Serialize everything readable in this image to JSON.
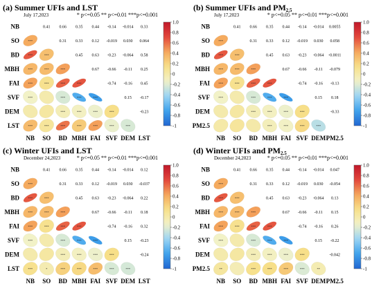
{
  "colors": {
    "scale": [
      "#2166d1",
      "#3fa2ec",
      "#9bd4f4",
      "#f2f2c8",
      "#f7e08a",
      "#f5a75c",
      "#e2463b",
      "#c0182a"
    ]
  },
  "chart_data": [
    {
      "type": "heatmap",
      "title": "(a) Summer   UFIs and LST",
      "date": "July 17,2023",
      "significance": "* p<=0.05   ** p<=0.01   ***p<=0.001",
      "labels": [
        "NB",
        "SO",
        "BD",
        "MBH",
        "FAI",
        "SVF",
        "DEM",
        "LST"
      ],
      "colorbar_ticks": [
        "1.0",
        "0.8",
        "0.6",
        "0.4",
        "0.2",
        "0",
        "-0.2",
        "-0.4",
        "-0.6",
        "-0.8",
        "-1"
      ],
      "matrix": [
        [
          null,
          0.41,
          0.66,
          0.35,
          0.44,
          -0.14,
          -0.014,
          0.33
        ],
        [
          0.41,
          null,
          0.31,
          0.33,
          0.12,
          -0.019,
          0.03,
          0.064
        ],
        [
          0.66,
          0.31,
          null,
          0.45,
          0.63,
          -0.23,
          -0.064,
          0.58
        ],
        [
          0.35,
          0.33,
          0.45,
          null,
          0.67,
          -0.66,
          -0.11,
          0.25
        ],
        [
          0.44,
          0.12,
          0.63,
          0.67,
          null,
          -0.74,
          -0.16,
          0.45
        ],
        [
          -0.14,
          -0.019,
          -0.23,
          -0.66,
          -0.74,
          null,
          0.15,
          -0.17
        ],
        [
          -0.014,
          0.03,
          -0.064,
          -0.11,
          -0.16,
          0.15,
          null,
          -0.23
        ],
        [
          0.33,
          0.064,
          0.58,
          0.25,
          0.45,
          -0.17,
          -0.23,
          null
        ]
      ],
      "value_labels": [
        [
          "",
          "0.41",
          "0.66",
          "0.35",
          "0.44",
          "-0.14",
          "-0.014",
          "0.33"
        ],
        [
          "",
          "",
          "0.31",
          "0.33",
          "0.12",
          "-0.019",
          "0.030",
          "0.064"
        ],
        [
          "",
          "",
          "",
          "0.45",
          "0.63",
          "-0.23",
          "-0.064",
          "0.58"
        ],
        [
          "",
          "",
          "",
          "",
          "0.67",
          "-0.66",
          "-0.11",
          "0.25"
        ],
        [
          "",
          "",
          "",
          "",
          "",
          "-0.74",
          "-0.16",
          "0.45"
        ],
        [
          "",
          "",
          "",
          "",
          "",
          "",
          "0.15",
          "-0.17"
        ],
        [
          "",
          "",
          "",
          "",
          "",
          "",
          "",
          "-0.23"
        ],
        [
          "",
          "",
          "",
          "",
          "",
          "",
          "",
          ""
        ]
      ],
      "stars": [
        [
          "",
          "",
          "",
          "",
          "",
          "",
          "",
          ""
        ],
        [
          "***",
          "",
          "",
          "",
          "",
          "",
          "",
          ""
        ],
        [
          "***",
          "***",
          "",
          "",
          "",
          "",
          "",
          ""
        ],
        [
          "***",
          "***",
          "***",
          "",
          "",
          "",
          "",
          ""
        ],
        [
          "***",
          "***",
          "***",
          "***",
          "",
          "",
          "",
          ""
        ],
        [
          "***",
          "",
          "***",
          "***",
          "***",
          "",
          "",
          ""
        ],
        [
          "",
          "",
          "***",
          "***",
          "***",
          "***",
          "",
          ""
        ],
        [
          "***",
          "***",
          "***",
          "***",
          "***",
          "***",
          "***",
          ""
        ]
      ]
    },
    {
      "type": "heatmap",
      "title": "(b) Summer   UFIs and PM",
      "title_sub": "2.5",
      "date": "July 17,2023",
      "significance": "* p<=0.05   ** p<=0.01   ***p<=0.001",
      "labels": [
        "NB",
        "SO",
        "BD",
        "MBH",
        "FAI",
        "SVF",
        "DEM",
        "PM2.5"
      ],
      "colorbar_ticks": [
        "1.0",
        "0.8",
        "0.6",
        "0.4",
        "0.2",
        "0",
        "-0.2",
        "-0.4",
        "-0.6",
        "-0.8",
        "-1"
      ],
      "matrix": [
        [
          null,
          0.41,
          0.66,
          0.35,
          0.44,
          -0.14,
          -0.014,
          0.0055
        ],
        [
          0.41,
          null,
          0.31,
          0.33,
          0.12,
          -0.019,
          0.03,
          0.058
        ],
        [
          0.66,
          0.31,
          null,
          0.45,
          0.63,
          -0.23,
          -0.064,
          -0.0011
        ],
        [
          0.35,
          0.33,
          0.45,
          null,
          0.67,
          -0.66,
          -0.11,
          -0.079
        ],
        [
          0.44,
          0.12,
          0.63,
          0.67,
          null,
          -0.74,
          -0.16,
          -0.13
        ],
        [
          -0.14,
          -0.019,
          -0.23,
          -0.66,
          -0.74,
          null,
          0.15,
          0.18
        ],
        [
          -0.014,
          0.03,
          -0.064,
          -0.11,
          -0.16,
          0.15,
          null,
          -0.33
        ],
        [
          0.0055,
          0.058,
          -0.0011,
          -0.079,
          -0.13,
          0.18,
          -0.33,
          null
        ]
      ],
      "value_labels": [
        [
          "",
          "0.41",
          "0.66",
          "0.35",
          "0.44",
          "-0.14",
          "-0.014",
          "0.0055"
        ],
        [
          "",
          "",
          "0.31",
          "0.33",
          "0.12",
          "-0.019",
          "0.030",
          "0.058"
        ],
        [
          "",
          "",
          "",
          "0.45",
          "0.63",
          "-0.23",
          "-0.064",
          "-0.0011"
        ],
        [
          "",
          "",
          "",
          "",
          "0.67",
          "-0.66",
          "-0.11",
          "-0.079"
        ],
        [
          "",
          "",
          "",
          "",
          "",
          "-0.74",
          "-0.16",
          "-0.13"
        ],
        [
          "",
          "",
          "",
          "",
          "",
          "",
          "0.15",
          "0.18"
        ],
        [
          "",
          "",
          "",
          "",
          "",
          "",
          "",
          "-0.33"
        ],
        [
          "",
          "",
          "",
          "",
          "",
          "",
          "",
          ""
        ]
      ],
      "stars": [
        [
          "",
          "",
          "",
          "",
          "",
          "",
          "",
          ""
        ],
        [
          "***",
          "",
          "",
          "",
          "",
          "",
          "",
          ""
        ],
        [
          "***",
          "***",
          "",
          "",
          "",
          "",
          "",
          ""
        ],
        [
          "***",
          "***",
          "***",
          "",
          "",
          "",
          "",
          ""
        ],
        [
          "***",
          "***",
          "***",
          "***",
          "",
          "",
          "",
          ""
        ],
        [
          "***",
          "",
          "***",
          "***",
          "***",
          "",
          "",
          ""
        ],
        [
          "",
          "",
          "***",
          "***",
          "***",
          "***",
          "",
          ""
        ],
        [
          "",
          "",
          "",
          "***",
          "***",
          "***",
          "***",
          ""
        ]
      ]
    },
    {
      "type": "heatmap",
      "title": "(c) Winter   UFIs and LST",
      "date": "December 24,2023",
      "significance": "* p<=0.05   ** p<=0.01   ***p<=0.001",
      "labels": [
        "NB",
        "SO",
        "BD",
        "MBH",
        "FAI",
        "SVF",
        "DEM",
        "LST"
      ],
      "colorbar_ticks": [
        "1.0",
        "0.8",
        "0.6",
        "0.4",
        "0.2",
        "0",
        "-0.2",
        "-0.4",
        "-0.6",
        "-0.8",
        "-1"
      ],
      "matrix": [
        [
          null,
          0.41,
          0.66,
          0.35,
          0.44,
          -0.14,
          -0.014,
          0.12
        ],
        [
          0.41,
          null,
          0.31,
          0.33,
          0.12,
          -0.019,
          0.03,
          -0.037
        ],
        [
          0.66,
          0.31,
          null,
          0.45,
          0.63,
          -0.23,
          -0.064,
          0.22
        ],
        [
          0.35,
          0.33,
          0.45,
          null,
          0.67,
          -0.66,
          -0.11,
          0.18
        ],
        [
          0.44,
          0.12,
          0.63,
          0.67,
          null,
          -0.74,
          -0.16,
          0.32
        ],
        [
          -0.14,
          -0.019,
          -0.23,
          -0.66,
          -0.74,
          null,
          0.15,
          -0.23
        ],
        [
          -0.014,
          0.03,
          -0.064,
          -0.11,
          -0.16,
          0.15,
          null,
          -0.24
        ],
        [
          0.12,
          -0.037,
          0.22,
          0.18,
          0.32,
          -0.23,
          -0.24,
          null
        ]
      ],
      "value_labels": [
        [
          "",
          "0.41",
          "0.66",
          "0.35",
          "0.44",
          "-0.14",
          "-0.014",
          "0.12"
        ],
        [
          "",
          "",
          "0.31",
          "0.33",
          "0.12",
          "-0.019",
          "0.030",
          "-0.037"
        ],
        [
          "",
          "",
          "",
          "0.45",
          "0.63",
          "-0.23",
          "-0.064",
          "0.22"
        ],
        [
          "",
          "",
          "",
          "",
          "0.67",
          "-0.66",
          "-0.11",
          "0.18"
        ],
        [
          "",
          "",
          "",
          "",
          "",
          "-0.74",
          "-0.16",
          "0.32"
        ],
        [
          "",
          "",
          "",
          "",
          "",
          "",
          "0.15",
          "-0.23"
        ],
        [
          "",
          "",
          "",
          "",
          "",
          "",
          "",
          "-0.24"
        ],
        [
          "",
          "",
          "",
          "",
          "",
          "",
          "",
          ""
        ]
      ],
      "stars": [
        [
          "",
          "",
          "",
          "",
          "",
          "",
          "",
          ""
        ],
        [
          "***",
          "",
          "",
          "",
          "",
          "",
          "",
          ""
        ],
        [
          "***",
          "***",
          "",
          "",
          "",
          "",
          "",
          ""
        ],
        [
          "***",
          "***",
          "***",
          "",
          "",
          "",
          "",
          ""
        ],
        [
          "***",
          "***",
          "***",
          "***",
          "",
          "",
          "",
          ""
        ],
        [
          "***",
          "",
          "***",
          "***",
          "***",
          "",
          "",
          ""
        ],
        [
          "",
          "",
          "***",
          "***",
          "***",
          "***",
          "",
          ""
        ],
        [
          "***",
          "*",
          "***",
          "***",
          "***",
          "***",
          "***",
          ""
        ]
      ]
    },
    {
      "type": "heatmap",
      "title": "(d) Winter   UFIs and PM",
      "title_sub": "2.5",
      "date": "December 24,2023",
      "significance": "* p<=0.05   ** p<=0.01   ***p<=0.001",
      "labels": [
        "NB",
        "SO",
        "BD",
        "MBH",
        "FAI",
        "SVF",
        "DEM",
        "PM2.5"
      ],
      "colorbar_ticks": [
        "1.0",
        "0.8",
        "0.6",
        "0.4",
        "0.2",
        "0",
        "-0.2",
        "-0.4",
        "-0.6",
        "-0.8",
        "-1"
      ],
      "matrix": [
        [
          null,
          0.41,
          0.66,
          0.35,
          0.44,
          -0.14,
          -0.014,
          0.047
        ],
        [
          0.41,
          null,
          0.31,
          0.33,
          0.12,
          -0.019,
          0.03,
          -0.054
        ],
        [
          0.66,
          0.31,
          null,
          0.45,
          0.63,
          -0.23,
          -0.064,
          0.13
        ],
        [
          0.35,
          0.33,
          0.45,
          null,
          0.67,
          -0.66,
          -0.11,
          0.15
        ],
        [
          0.44,
          0.12,
          0.63,
          0.67,
          null,
          -0.74,
          -0.16,
          0.26
        ],
        [
          -0.14,
          -0.019,
          -0.23,
          -0.66,
          -0.74,
          null,
          0.15,
          -0.22
        ],
        [
          -0.014,
          0.03,
          -0.064,
          -0.11,
          -0.16,
          0.15,
          null,
          -0.042
        ],
        [
          0.047,
          -0.054,
          0.13,
          0.15,
          0.26,
          -0.22,
          -0.042,
          null
        ]
      ],
      "value_labels": [
        [
          "",
          "0.41",
          "0.66",
          "0.35",
          "0.44",
          "-0.14",
          "-0.014",
          "0.047"
        ],
        [
          "",
          "",
          "0.31",
          "0.33",
          "0.12",
          "-0.019",
          "0.030",
          "-0.054"
        ],
        [
          "",
          "",
          "",
          "0.45",
          "0.63",
          "-0.23",
          "-0.064",
          "0.13"
        ],
        [
          "",
          "",
          "",
          "",
          "0.67",
          "-0.66",
          "-0.11",
          "0.15"
        ],
        [
          "",
          "",
          "",
          "",
          "",
          "-0.74",
          "-0.16",
          "0.26"
        ],
        [
          "",
          "",
          "",
          "",
          "",
          "",
          "0.15",
          "-0.22"
        ],
        [
          "",
          "",
          "",
          "",
          "",
          "",
          "",
          "-0.042"
        ],
        [
          "",
          "",
          "",
          "",
          "",
          "",
          "",
          ""
        ]
      ],
      "stars": [
        [
          "",
          "",
          "",
          "",
          "",
          "",
          "",
          ""
        ],
        [
          "***",
          "",
          "",
          "",
          "",
          "",
          "",
          ""
        ],
        [
          "***",
          "***",
          "",
          "",
          "",
          "",
          "",
          ""
        ],
        [
          "***",
          "***",
          "***",
          "",
          "",
          "",
          "",
          ""
        ],
        [
          "***",
          "***",
          "***",
          "***",
          "",
          "",
          "",
          ""
        ],
        [
          "***",
          "",
          "***",
          "***",
          "***",
          "",
          "",
          ""
        ],
        [
          "",
          "",
          "***",
          "***",
          "***",
          "***",
          "",
          ""
        ],
        [
          "**",
          "",
          "***",
          "***",
          "***",
          "***",
          "**",
          ""
        ]
      ]
    }
  ]
}
